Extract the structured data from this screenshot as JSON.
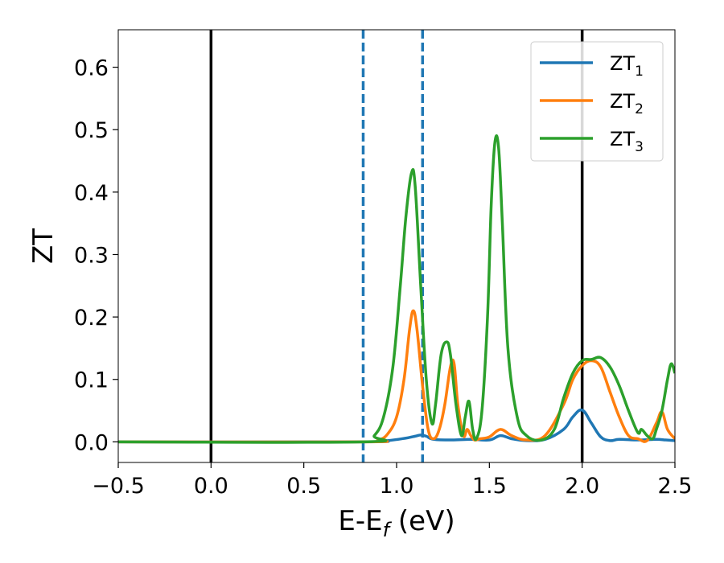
{
  "chart_data": {
    "type": "line",
    "xlabel_main": "E-E",
    "xlabel_sub": "f",
    "xlabel_unit": " (eV)",
    "ylabel": "ZT",
    "xlim": [
      -0.5,
      2.5
    ],
    "ylim": [
      -0.033,
      0.66
    ],
    "xticks": [
      -0.5,
      0.0,
      0.5,
      1.0,
      1.5,
      2.0,
      2.5
    ],
    "xtick_labels": [
      "−0.5",
      "0.0",
      "0.5",
      "1.0",
      "1.5",
      "2.0",
      "2.5"
    ],
    "yticks": [
      0.0,
      0.1,
      0.2,
      0.3,
      0.4,
      0.5,
      0.6
    ],
    "ytick_labels": [
      "0.0",
      "0.1",
      "0.2",
      "0.3",
      "0.4",
      "0.5",
      "0.6"
    ],
    "grid": false,
    "legend_position": "top-right",
    "vlines": [
      {
        "x": 0.0,
        "style": "solid",
        "color": "#000000"
      },
      {
        "x": 2.0,
        "style": "solid",
        "color": "#000000"
      },
      {
        "x": 0.82,
        "style": "dashed",
        "color": "#1f77b4"
      },
      {
        "x": 1.14,
        "style": "dashed",
        "color": "#1f77b4"
      }
    ],
    "series": [
      {
        "name_main": "ZT",
        "name_sub": "1",
        "color": "#1f77b4",
        "x": [
          -0.5,
          0.8,
          0.95,
          1.05,
          1.1,
          1.13,
          1.16,
          1.2,
          1.3,
          1.4,
          1.5,
          1.56,
          1.62,
          1.7,
          1.8,
          1.9,
          1.95,
          2.0,
          2.05,
          2.1,
          2.15,
          2.2,
          2.3,
          2.4,
          2.45,
          2.5
        ],
        "y": [
          0.0,
          0.0,
          0.002,
          0.006,
          0.009,
          0.011,
          0.009,
          0.004,
          0.003,
          0.004,
          0.003,
          0.01,
          0.005,
          0.002,
          0.004,
          0.02,
          0.04,
          0.051,
          0.03,
          0.008,
          0.002,
          0.004,
          0.003,
          0.004,
          0.003,
          0.002
        ]
      },
      {
        "name_main": "ZT",
        "name_sub": "2",
        "color": "#ff7f0e",
        "x": [
          -0.5,
          0.82,
          0.9,
          0.95,
          1.0,
          1.04,
          1.07,
          1.09,
          1.11,
          1.14,
          1.17,
          1.2,
          1.23,
          1.26,
          1.29,
          1.31,
          1.33,
          1.36,
          1.38,
          1.4,
          1.42,
          1.45,
          1.5,
          1.56,
          1.62,
          1.7,
          1.8,
          1.9,
          1.95,
          2.0,
          2.05,
          2.1,
          2.15,
          2.2,
          2.25,
          2.3,
          2.35,
          2.4,
          2.43,
          2.46,
          2.5
        ],
        "y": [
          0.0,
          0.0,
          0.003,
          0.012,
          0.04,
          0.1,
          0.18,
          0.21,
          0.18,
          0.09,
          0.02,
          0.005,
          0.02,
          0.06,
          0.12,
          0.125,
          0.06,
          0.01,
          0.02,
          0.01,
          0.003,
          0.005,
          0.008,
          0.02,
          0.01,
          0.003,
          0.01,
          0.06,
          0.1,
          0.122,
          0.13,
          0.12,
          0.08,
          0.04,
          0.01,
          0.005,
          0.002,
          0.03,
          0.048,
          0.02,
          0.005
        ]
      },
      {
        "name_main": "ZT",
        "name_sub": "3",
        "color": "#2ca02c",
        "x": [
          -0.5,
          0.82,
          0.88,
          0.93,
          0.98,
          1.02,
          1.05,
          1.08,
          1.1,
          1.13,
          1.16,
          1.19,
          1.21,
          1.24,
          1.27,
          1.29,
          1.32,
          1.35,
          1.37,
          1.39,
          1.41,
          1.43,
          1.46,
          1.49,
          1.51,
          1.53,
          1.55,
          1.57,
          1.6,
          1.65,
          1.7,
          1.78,
          1.85,
          1.9,
          1.95,
          2.0,
          2.05,
          2.1,
          2.15,
          2.2,
          2.25,
          2.3,
          2.32,
          2.35,
          2.38,
          2.4,
          2.43,
          2.46,
          2.48,
          2.5
        ],
        "y": [
          0.0,
          0.0,
          0.01,
          0.04,
          0.12,
          0.25,
          0.36,
          0.43,
          0.41,
          0.25,
          0.1,
          0.03,
          0.06,
          0.14,
          0.16,
          0.14,
          0.06,
          0.01,
          0.04,
          0.065,
          0.02,
          0.005,
          0.05,
          0.2,
          0.38,
          0.48,
          0.47,
          0.35,
          0.15,
          0.04,
          0.01,
          0.003,
          0.02,
          0.07,
          0.11,
          0.13,
          0.132,
          0.135,
          0.12,
          0.09,
          0.05,
          0.015,
          0.02,
          0.01,
          0.005,
          0.02,
          0.05,
          0.1,
          0.125,
          0.11
        ]
      }
    ]
  }
}
